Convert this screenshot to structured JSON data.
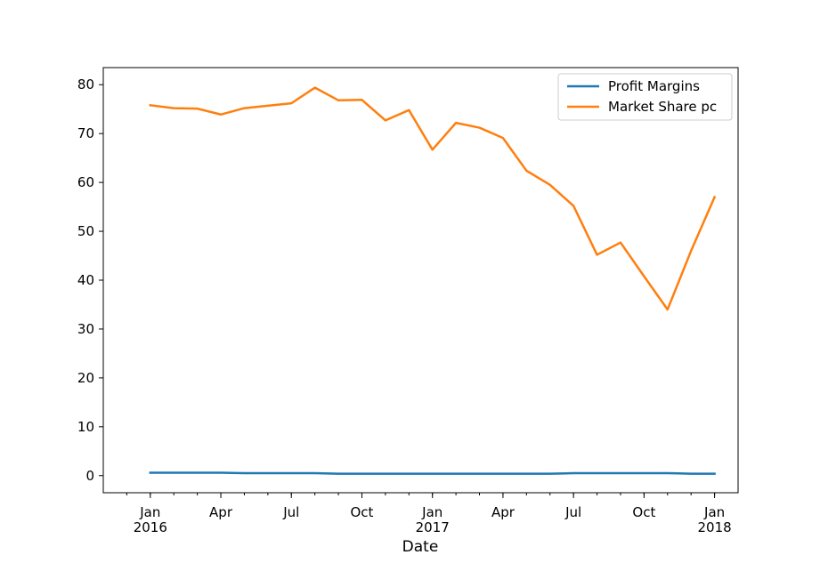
{
  "chart_data": {
    "type": "line",
    "xlabel": "Date",
    "ylabel": "",
    "title": "",
    "x": [
      "2016-01",
      "2016-02",
      "2016-03",
      "2016-04",
      "2016-05",
      "2016-06",
      "2016-07",
      "2016-08",
      "2016-09",
      "2016-10",
      "2016-11",
      "2016-12",
      "2017-01",
      "2017-02",
      "2017-03",
      "2017-04",
      "2017-05",
      "2017-06",
      "2017-07",
      "2017-08",
      "2017-09",
      "2017-10",
      "2017-11",
      "2017-12",
      "2018-01"
    ],
    "xlim": [
      "2015-11",
      "2018-02"
    ],
    "ylim": [
      -3.5,
      83.5
    ],
    "yticks": [
      0,
      10,
      20,
      30,
      40,
      50,
      60,
      70,
      80
    ],
    "xticks": [
      {
        "x": "2016-01",
        "label": "Jan",
        "sublabel": "2016"
      },
      {
        "x": "2016-04",
        "label": "Apr",
        "sublabel": ""
      },
      {
        "x": "2016-07",
        "label": "Jul",
        "sublabel": ""
      },
      {
        "x": "2016-10",
        "label": "Oct",
        "sublabel": ""
      },
      {
        "x": "2017-01",
        "label": "Jan",
        "sublabel": "2017"
      },
      {
        "x": "2017-04",
        "label": "Apr",
        "sublabel": ""
      },
      {
        "x": "2017-07",
        "label": "Jul",
        "sublabel": ""
      },
      {
        "x": "2017-10",
        "label": "Oct",
        "sublabel": ""
      },
      {
        "x": "2018-01",
        "label": "Jan",
        "sublabel": "2018"
      }
    ],
    "grid": false,
    "legend_position": "top-right",
    "series": [
      {
        "name": "Profit Margins",
        "color": "#1f77b4",
        "values": [
          0.6,
          0.6,
          0.6,
          0.6,
          0.5,
          0.5,
          0.5,
          0.5,
          0.4,
          0.4,
          0.4,
          0.4,
          0.4,
          0.4,
          0.4,
          0.4,
          0.4,
          0.4,
          0.5,
          0.5,
          0.5,
          0.5,
          0.5,
          0.4,
          0.4
        ]
      },
      {
        "name": "Market Share pc",
        "color": "#ff7f0e",
        "values": [
          75.8,
          75.2,
          75.1,
          73.9,
          75.2,
          75.7,
          76.2,
          79.4,
          76.8,
          76.9,
          72.7,
          74.8,
          66.7,
          72.2,
          71.2,
          69.1,
          62.4,
          59.5,
          55.2,
          45.2,
          47.7,
          40.8,
          34.0,
          46.0,
          57.0
        ]
      }
    ]
  }
}
